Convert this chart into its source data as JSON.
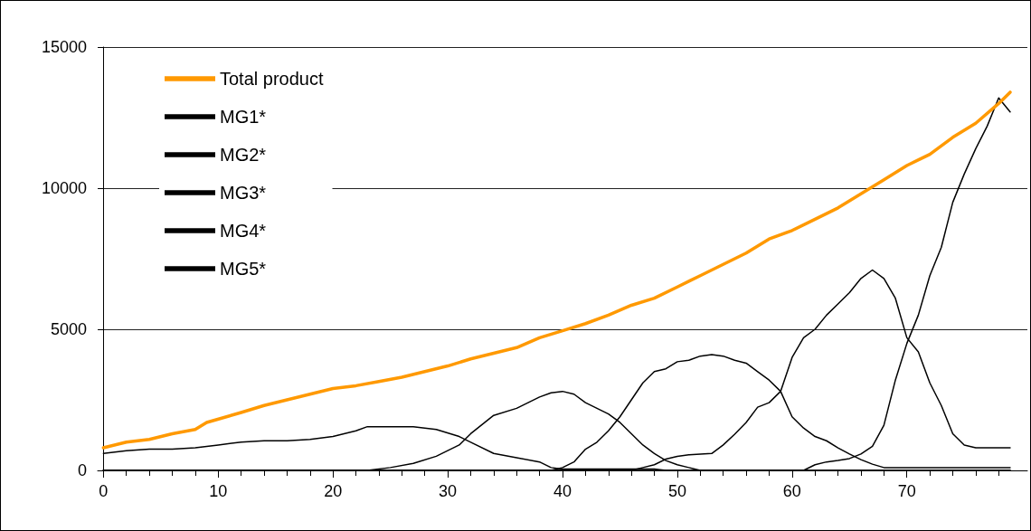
{
  "chart_data": {
    "type": "line",
    "xlim": [
      -0.5,
      80.5
    ],
    "xticks": [
      0,
      10,
      20,
      30,
      40,
      50,
      60,
      70
    ],
    "ylim": [
      0,
      15000
    ],
    "yticks": [
      0,
      5000,
      10000,
      15000
    ],
    "grid": "y",
    "legend": "top left",
    "marker": "none",
    "line_style": "solid",
    "series": [
      {
        "name": "Total product",
        "color": "#ff9900",
        "x": [
          0,
          2,
          4,
          6,
          8,
          9,
          12,
          14,
          16,
          18,
          20,
          22,
          24,
          26,
          28,
          30,
          32,
          34,
          36,
          38,
          40,
          42,
          44,
          46,
          48,
          50,
          52,
          54,
          56,
          58,
          60,
          62,
          64,
          66,
          68,
          70,
          72,
          74,
          76,
          78,
          79
        ],
        "values": [
          800,
          1000,
          1100,
          1300,
          1450,
          1700,
          2050,
          2300,
          2500,
          2700,
          2900,
          3000,
          3150,
          3300,
          3500,
          3700,
          3950,
          4150,
          4350,
          4700,
          4950,
          5200,
          5500,
          5850,
          6100,
          6500,
          6900,
          7300,
          7700,
          8200,
          8500,
          8900,
          9300,
          9800,
          10300,
          10800,
          11200,
          11800,
          12300,
          13000,
          13400
        ]
      },
      {
        "name": "MG1*",
        "color": "#000000",
        "x": [
          0,
          2,
          4,
          6,
          8,
          10,
          12,
          14,
          16,
          18,
          20,
          22,
          23,
          27,
          29,
          31,
          32,
          34,
          36,
          38,
          39,
          40,
          42,
          48,
          49,
          79
        ],
        "values": [
          600,
          700,
          750,
          750,
          800,
          900,
          1000,
          1050,
          1050,
          1100,
          1200,
          1400,
          1550,
          1550,
          1450,
          1200,
          1000,
          600,
          450,
          300,
          100,
          50,
          50,
          50,
          0,
          0
        ]
      },
      {
        "name": "MG2*",
        "color": "#000000",
        "x": [
          0,
          23,
          25,
          27,
          29,
          30,
          31,
          32,
          34,
          36,
          38,
          39,
          40,
          41,
          42,
          44,
          45,
          46,
          47,
          48,
          49,
          50,
          51,
          52,
          79
        ],
        "values": [
          0,
          0,
          100,
          250,
          500,
          700,
          900,
          1300,
          1950,
          2200,
          2600,
          2750,
          2800,
          2700,
          2400,
          2000,
          1700,
          1300,
          900,
          600,
          350,
          200,
          100,
          0,
          0
        ]
      },
      {
        "name": "MG3*",
        "color": "#000000",
        "x": [
          0,
          39,
          40,
          41,
          42,
          43,
          44,
          45,
          46,
          47,
          48,
          49,
          50,
          51,
          52,
          53,
          54,
          55,
          56,
          57,
          58,
          59,
          60,
          61,
          62,
          63,
          64,
          65,
          66,
          67,
          68,
          69,
          79
        ],
        "values": [
          0,
          0,
          100,
          300,
          750,
          1000,
          1400,
          1900,
          2500,
          3100,
          3500,
          3600,
          3850,
          3900,
          4050,
          4100,
          4050,
          3900,
          3800,
          3500,
          3200,
          2800,
          1900,
          1500,
          1200,
          1050,
          800,
          580,
          380,
          220,
          100,
          100,
          100
        ]
      },
      {
        "name": "MG4*",
        "color": "#000000",
        "x": [
          0,
          46,
          47,
          48,
          49,
          50,
          51,
          53,
          54,
          55,
          56,
          57,
          58,
          59,
          60,
          61,
          62,
          63,
          64,
          65,
          66,
          67,
          68,
          69,
          70,
          71,
          72,
          73,
          74,
          75,
          76,
          79
        ],
        "values": [
          0,
          0,
          100,
          200,
          400,
          500,
          550,
          600,
          900,
          1280,
          1700,
          2240,
          2400,
          2800,
          4000,
          4700,
          5000,
          5500,
          5900,
          6300,
          6800,
          7100,
          6800,
          6100,
          4700,
          4200,
          3100,
          2300,
          1300,
          900,
          800,
          800
        ]
      },
      {
        "name": "MG5*",
        "color": "#000000",
        "x": [
          0,
          61,
          62,
          63,
          64,
          65,
          66,
          67,
          68,
          69,
          70,
          71,
          72,
          73,
          74,
          75,
          76,
          77,
          78,
          79
        ],
        "values": [
          0,
          0,
          200,
          300,
          350,
          420,
          580,
          850,
          1600,
          3200,
          4500,
          5500,
          6900,
          7900,
          9500,
          10500,
          11400,
          12200,
          13200,
          12700
        ]
      }
    ]
  }
}
